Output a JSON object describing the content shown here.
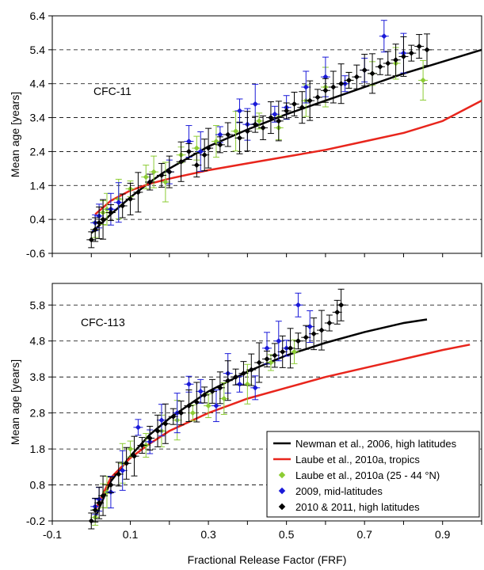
{
  "figure": {
    "xlabel": "Fractional Release Factor (FRF)"
  },
  "chart_data": [
    {
      "type": "scatter",
      "panel_label": "CFC-11",
      "xlabel": "",
      "ylabel": "Mean age [years]",
      "xlim": [
        -0.1,
        1.0
      ],
      "ylim": [
        -0.6,
        6.4
      ],
      "yticks": [
        "-0.6",
        "0.4",
        "1.4",
        "2.4",
        "3.4",
        "4.4",
        "5.4",
        "6.4"
      ],
      "grid": "horizontal-dashed",
      "series": [
        {
          "name": "Newman et al., 2006, high latitudes",
          "kind": "line",
          "color": "#000000",
          "x": [
            0.0,
            0.05,
            0.1,
            0.15,
            0.2,
            0.3,
            0.4,
            0.5,
            0.6,
            0.7,
            0.8,
            0.9,
            1.0
          ],
          "y": [
            0.0,
            0.55,
            1.05,
            1.5,
            1.9,
            2.55,
            3.05,
            3.5,
            3.9,
            4.3,
            4.7,
            5.05,
            5.4
          ]
        },
        {
          "name": "Laube et al., 2010a, tropics",
          "kind": "line",
          "color": "#e8251c",
          "x": [
            0.01,
            0.05,
            0.1,
            0.15,
            0.2,
            0.3,
            0.4,
            0.5,
            0.6,
            0.7,
            0.8,
            0.9,
            1.0
          ],
          "y": [
            0.55,
            0.95,
            1.25,
            1.45,
            1.6,
            1.85,
            2.05,
            2.25,
            2.45,
            2.7,
            2.95,
            3.3,
            3.9
          ]
        },
        {
          "name": "Laube et al., 2010a (25 - 44 °N)",
          "kind": "points",
          "color": "#8ccc34",
          "x": [
            0.01,
            0.03,
            0.04,
            0.07,
            0.1,
            0.14,
            0.16,
            0.19,
            0.23,
            0.27,
            0.32,
            0.37,
            0.43,
            0.48,
            0.55,
            0.6,
            0.66,
            0.72,
            0.78,
            0.85
          ],
          "y": [
            0.1,
            0.6,
            0.7,
            1.0,
            1.3,
            1.65,
            1.8,
            1.5,
            2.3,
            2.5,
            2.7,
            3.0,
            3.3,
            3.1,
            3.9,
            4.3,
            4.5,
            4.7,
            5.0,
            4.5
          ]
        },
        {
          "name": "2009, mid-latitudes",
          "kind": "points",
          "color": "#1a1ad8",
          "x": [
            0.01,
            0.02,
            0.05,
            0.07,
            0.15,
            0.2,
            0.25,
            0.28,
            0.33,
            0.38,
            0.4,
            0.42,
            0.47,
            0.5,
            0.55,
            0.6,
            0.65,
            0.7,
            0.75,
            0.8
          ],
          "y": [
            0.3,
            0.5,
            0.7,
            0.9,
            1.5,
            1.8,
            2.7,
            2.4,
            2.9,
            3.6,
            3.2,
            3.8,
            3.5,
            3.7,
            4.3,
            4.6,
            4.4,
            4.8,
            5.8,
            5.3
          ]
        },
        {
          "name": "2010 & 2011, high latitudes",
          "kind": "points",
          "color": "#000000",
          "x": [
            0.0,
            0.01,
            0.02,
            0.03,
            0.05,
            0.08,
            0.1,
            0.12,
            0.15,
            0.18,
            0.2,
            0.23,
            0.25,
            0.27,
            0.29,
            0.3,
            0.33,
            0.35,
            0.38,
            0.4,
            0.42,
            0.44,
            0.46,
            0.48,
            0.5,
            0.52,
            0.54,
            0.56,
            0.58,
            0.6,
            0.62,
            0.64,
            0.66,
            0.68,
            0.7,
            0.72,
            0.74,
            0.76,
            0.78,
            0.8,
            0.82,
            0.84,
            0.86
          ],
          "y": [
            -0.2,
            0.1,
            0.3,
            0.4,
            0.6,
            0.8,
            1.0,
            1.2,
            1.5,
            1.7,
            1.8,
            2.1,
            2.4,
            2.0,
            2.3,
            2.5,
            2.6,
            2.9,
            2.8,
            3.0,
            3.2,
            3.1,
            3.4,
            3.3,
            3.6,
            3.8,
            3.7,
            3.9,
            4.0,
            4.2,
            4.3,
            4.4,
            4.5,
            4.6,
            4.8,
            4.7,
            4.9,
            5.0,
            5.1,
            5.2,
            5.3,
            5.5,
            5.4
          ]
        }
      ]
    },
    {
      "type": "scatter",
      "panel_label": "CFC-113",
      "xlabel": "Fractional Release Factor (FRF)",
      "ylabel": "Mean age [years]",
      "xlim": [
        -0.1,
        1.0
      ],
      "ylim": [
        -0.2,
        6.4
      ],
      "yticks": [
        "-0.2",
        "0.8",
        "1.8",
        "2.8",
        "3.8",
        "4.8",
        "5.8"
      ],
      "xticks": [
        "-0.1",
        "0.1",
        "0.3",
        "0.5",
        "0.7",
        "0.9"
      ],
      "grid": "horizontal-dashed",
      "legend_position": "bottom-right",
      "series": [
        {
          "name": "Newman et al., 2006, high latitudes",
          "kind": "line",
          "color": "#000000",
          "x": [
            0.01,
            0.05,
            0.1,
            0.15,
            0.2,
            0.3,
            0.4,
            0.5,
            0.6,
            0.7,
            0.8,
            0.86
          ],
          "y": [
            -0.1,
            0.9,
            1.6,
            2.2,
            2.65,
            3.4,
            3.95,
            4.4,
            4.75,
            5.05,
            5.3,
            5.4
          ]
        },
        {
          "name": "Laube et al., 2010a, tropics",
          "kind": "line",
          "color": "#e8251c",
          "x": [
            0.01,
            0.05,
            0.1,
            0.15,
            0.2,
            0.3,
            0.4,
            0.5,
            0.6,
            0.7,
            0.8,
            0.9,
            0.97
          ],
          "y": [
            0.1,
            1.0,
            1.55,
            1.95,
            2.3,
            2.8,
            3.2,
            3.5,
            3.8,
            4.05,
            4.3,
            4.55,
            4.7
          ]
        },
        {
          "name": "Laube et al., 2010a (25 - 44 °N)",
          "kind": "points",
          "color": "#8ccc34",
          "x": [
            0.01,
            0.03,
            0.04,
            0.08,
            0.1,
            0.14,
            0.18,
            0.22,
            0.26,
            0.3,
            0.34,
            0.4,
            0.46,
            0.52
          ],
          "y": [
            -0.1,
            0.5,
            0.6,
            1.4,
            1.8,
            1.9,
            2.3,
            2.6,
            2.8,
            3.0,
            3.2,
            3.6,
            4.2,
            4.5
          ]
        },
        {
          "name": "2009, mid-latitudes",
          "kind": "points",
          "color": "#1a1ad8",
          "x": [
            0.01,
            0.02,
            0.05,
            0.08,
            0.12,
            0.15,
            0.18,
            0.22,
            0.25,
            0.28,
            0.32,
            0.35,
            0.38,
            0.42,
            0.45,
            0.48,
            0.5,
            0.53,
            0.56
          ],
          "y": [
            0.2,
            0.4,
            0.6,
            1.2,
            2.4,
            2.0,
            2.6,
            2.8,
            3.6,
            3.4,
            3.0,
            3.9,
            3.6,
            3.5,
            4.6,
            4.8,
            4.6,
            5.8,
            5.2
          ]
        },
        {
          "name": "2010 & 2011, high latitudes",
          "kind": "points",
          "color": "#000000",
          "x": [
            0.0,
            0.01,
            0.02,
            0.03,
            0.05,
            0.07,
            0.09,
            0.11,
            0.13,
            0.15,
            0.17,
            0.19,
            0.21,
            0.23,
            0.25,
            0.27,
            0.29,
            0.31,
            0.33,
            0.35,
            0.37,
            0.39,
            0.41,
            0.43,
            0.45,
            0.47,
            0.49,
            0.51,
            0.53,
            0.55,
            0.57,
            0.59,
            0.61,
            0.63,
            0.64
          ],
          "y": [
            -0.2,
            0.1,
            0.3,
            0.5,
            0.8,
            1.1,
            1.4,
            1.6,
            1.9,
            2.1,
            2.3,
            2.5,
            2.7,
            2.8,
            3.0,
            3.1,
            3.3,
            3.4,
            3.5,
            3.7,
            3.8,
            3.9,
            4.0,
            4.2,
            4.3,
            4.4,
            4.5,
            4.6,
            4.8,
            4.9,
            5.0,
            5.1,
            5.3,
            5.6,
            5.8
          ]
        }
      ]
    }
  ]
}
